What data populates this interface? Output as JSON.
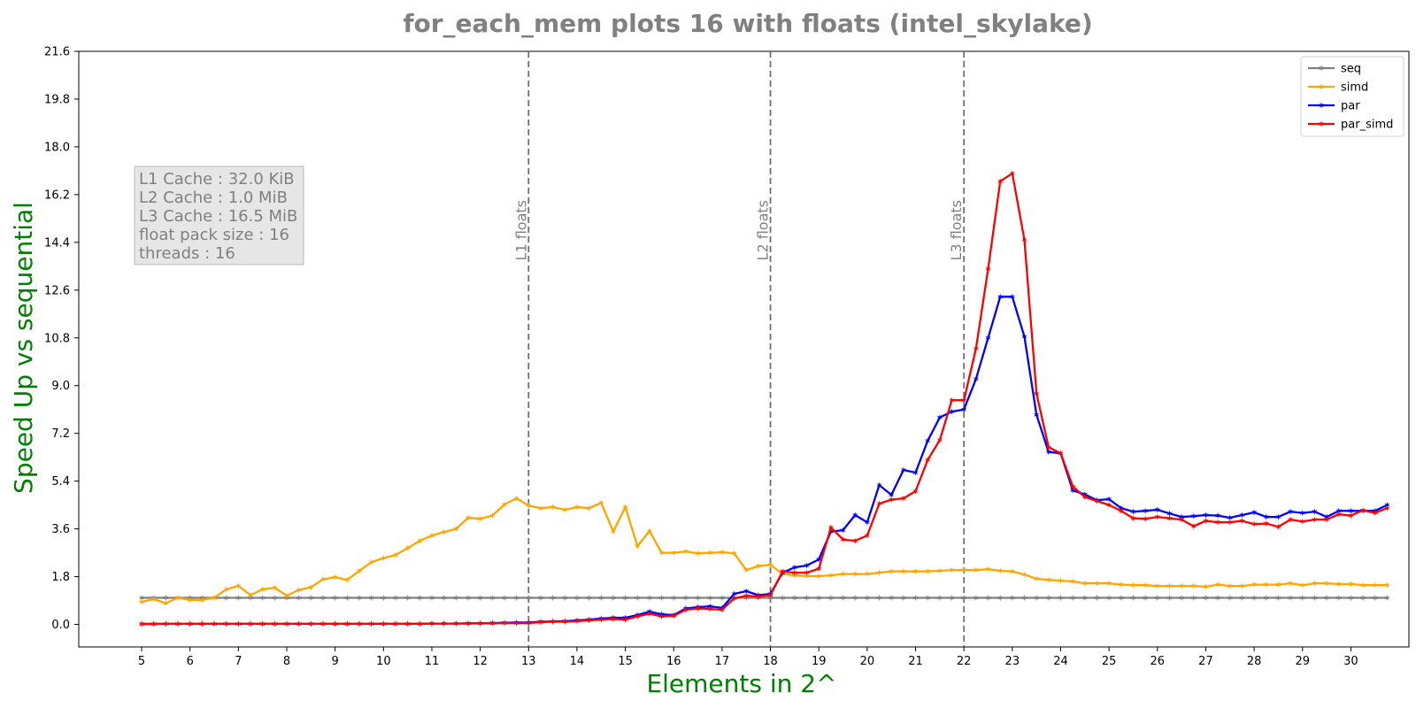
{
  "chart_data": {
    "type": "line",
    "title": "for_each_mem plots 16 with floats  (intel_skylake)",
    "xlabel": "Elements in 2^",
    "ylabel": "Speed Up vs sequential",
    "xlim": [
      3.7,
      31.2
    ],
    "ylim": [
      -0.85,
      21.6
    ],
    "x_ticks": [
      5,
      6,
      7,
      8,
      9,
      10,
      11,
      12,
      13,
      14,
      15,
      16,
      17,
      18,
      19,
      20,
      21,
      22,
      23,
      24,
      25,
      26,
      27,
      28,
      29,
      30
    ],
    "y_ticks": [
      "0.0",
      "1.8",
      "3.6",
      "5.4",
      "7.2",
      "9.0",
      "10.8",
      "12.6",
      "14.4",
      "16.2",
      "18.0",
      "19.8",
      "21.6"
    ],
    "grid": false,
    "legend_position": "top-right",
    "x": [
      5.0,
      5.25,
      5.5,
      5.75,
      6.0,
      6.25,
      6.5,
      6.75,
      7.0,
      7.25,
      7.5,
      7.75,
      8.0,
      8.25,
      8.5,
      8.75,
      9.0,
      9.25,
      9.5,
      9.75,
      10.0,
      10.25,
      10.5,
      10.75,
      11.0,
      11.25,
      11.5,
      11.75,
      12.0,
      12.25,
      12.5,
      12.75,
      13.0,
      13.25,
      13.5,
      13.75,
      14.0,
      14.25,
      14.5,
      14.75,
      15.0,
      15.25,
      15.5,
      15.75,
      16.0,
      16.25,
      16.5,
      16.75,
      17.0,
      17.25,
      17.5,
      17.75,
      18.0,
      18.25,
      18.5,
      18.75,
      19.0,
      19.25,
      19.5,
      19.75,
      20.0,
      20.25,
      20.5,
      20.75,
      21.0,
      21.25,
      21.5,
      21.75,
      22.0,
      22.25,
      22.5,
      22.75,
      23.0,
      23.25,
      23.5,
      23.75,
      24.0,
      24.25,
      24.5,
      24.75,
      25.0,
      25.25,
      25.5,
      25.75,
      26.0,
      26.25,
      26.5,
      26.75,
      27.0,
      27.25,
      27.5,
      27.75,
      28.0,
      28.25,
      28.5,
      28.75,
      29.0,
      29.25,
      29.5,
      29.75,
      30.0,
      30.25,
      30.5,
      30.75
    ],
    "series": [
      {
        "name": "seq",
        "color": "#808080",
        "values": [
          1,
          1,
          1,
          1,
          1,
          1,
          1,
          1,
          1,
          1,
          1,
          1,
          1,
          1,
          1,
          1,
          1,
          1,
          1,
          1,
          1,
          1,
          1,
          1,
          1,
          1,
          1,
          1,
          1,
          1,
          1,
          1,
          1,
          1,
          1,
          1,
          1,
          1,
          1,
          1,
          1,
          1,
          1,
          1,
          1,
          1,
          1,
          1,
          1,
          1,
          1,
          1,
          1,
          1,
          1,
          1,
          1,
          1,
          1,
          1,
          1,
          1,
          1,
          1,
          1,
          1,
          1,
          1,
          1,
          1,
          1,
          1,
          1,
          1,
          1,
          1,
          1,
          1,
          1,
          1,
          1,
          1,
          1,
          1,
          1,
          1,
          1,
          1,
          1,
          1,
          1,
          1,
          1,
          1,
          1,
          1,
          1,
          1,
          1,
          1,
          1,
          1,
          1,
          1
        ]
      },
      {
        "name": "simd",
        "color": "#ffa500",
        "values": [
          0.85,
          0.95,
          0.8,
          1.0,
          0.92,
          0.92,
          1.0,
          1.32,
          1.45,
          1.1,
          1.32,
          1.38,
          1.08,
          1.3,
          1.4,
          1.7,
          1.78,
          1.68,
          2.02,
          2.35,
          2.5,
          2.62,
          2.88,
          3.15,
          3.35,
          3.48,
          3.6,
          4.02,
          3.98,
          4.1,
          4.52,
          4.75,
          4.48,
          4.38,
          4.42,
          4.32,
          4.42,
          4.38,
          4.58,
          3.5,
          4.42,
          2.95,
          3.52,
          2.7,
          2.7,
          2.75,
          2.68,
          2.7,
          2.72,
          2.68,
          2.05,
          2.2,
          2.25,
          1.9,
          1.85,
          1.82,
          1.82,
          1.85,
          1.9,
          1.9,
          1.9,
          1.95,
          2.0,
          2.0,
          2.0,
          2.0,
          2.02,
          2.05,
          2.05,
          2.05,
          2.08,
          2.02,
          2.0,
          1.88,
          1.72,
          1.68,
          1.65,
          1.62,
          1.55,
          1.55,
          1.55,
          1.5,
          1.48,
          1.48,
          1.45,
          1.45,
          1.45,
          1.45,
          1.42,
          1.5,
          1.45,
          1.45,
          1.5,
          1.5,
          1.5,
          1.55,
          1.48,
          1.55,
          1.55,
          1.52,
          1.52,
          1.48,
          1.48,
          1.48
        ]
      },
      {
        "name": "par",
        "color": "#0000ff",
        "values": [
          0.02,
          0.02,
          0.02,
          0.02,
          0.02,
          0.02,
          0.02,
          0.02,
          0.02,
          0.02,
          0.02,
          0.02,
          0.02,
          0.02,
          0.02,
          0.02,
          0.02,
          0.02,
          0.02,
          0.02,
          0.02,
          0.02,
          0.02,
          0.02,
          0.03,
          0.03,
          0.03,
          0.04,
          0.04,
          0.05,
          0.06,
          0.07,
          0.07,
          0.1,
          0.11,
          0.12,
          0.15,
          0.18,
          0.22,
          0.25,
          0.25,
          0.35,
          0.48,
          0.38,
          0.35,
          0.6,
          0.65,
          0.68,
          0.62,
          1.15,
          1.25,
          1.1,
          1.15,
          1.95,
          2.15,
          2.22,
          2.45,
          3.5,
          3.55,
          4.12,
          3.85,
          5.25,
          4.88,
          5.82,
          5.72,
          6.92,
          7.8,
          8.02,
          8.1,
          9.25,
          10.8,
          12.35,
          12.35,
          10.85,
          7.9,
          6.5,
          6.45,
          5.05,
          4.9,
          4.68,
          4.72,
          4.38,
          4.25,
          4.28,
          4.32,
          4.18,
          4.05,
          4.08,
          4.12,
          4.1,
          4.02,
          4.12,
          4.22,
          4.05,
          4.05,
          4.25,
          4.2,
          4.25,
          4.05,
          4.28,
          4.28,
          4.28,
          4.28,
          4.5
        ]
      },
      {
        "name": "par_simd",
        "color": "#ff0000",
        "values": [
          0.01,
          0.01,
          0.02,
          0.02,
          0.02,
          0.02,
          0.02,
          0.02,
          0.02,
          0.02,
          0.02,
          0.02,
          0.02,
          0.02,
          0.02,
          0.02,
          0.02,
          0.02,
          0.02,
          0.02,
          0.02,
          0.02,
          0.02,
          0.02,
          0.03,
          0.03,
          0.03,
          0.03,
          0.04,
          0.04,
          0.05,
          0.05,
          0.05,
          0.08,
          0.1,
          0.1,
          0.12,
          0.15,
          0.18,
          0.2,
          0.18,
          0.3,
          0.4,
          0.3,
          0.32,
          0.55,
          0.6,
          0.58,
          0.55,
          0.98,
          1.08,
          1.05,
          1.1,
          2.0,
          1.95,
          1.95,
          2.1,
          3.65,
          3.2,
          3.15,
          3.35,
          4.55,
          4.7,
          4.75,
          5.02,
          6.2,
          6.95,
          8.45,
          8.45,
          10.4,
          13.4,
          16.7,
          17.0,
          14.5,
          8.7,
          6.68,
          6.45,
          5.2,
          4.8,
          4.65,
          4.5,
          4.28,
          4.0,
          3.98,
          4.05,
          4.0,
          3.95,
          3.7,
          3.9,
          3.85,
          3.85,
          3.9,
          3.78,
          3.8,
          3.68,
          3.95,
          3.88,
          3.95,
          3.95,
          4.15,
          4.1,
          4.3,
          4.2,
          4.38
        ]
      }
    ],
    "vlines": [
      {
        "x": 13,
        "label": "L1 floats"
      },
      {
        "x": 18,
        "label": "L2 floats"
      },
      {
        "x": 22,
        "label": "L3 floats"
      }
    ],
    "info_box": [
      "L1 Cache : 32.0 KiB",
      "L2 Cache : 1.0 MiB",
      "L3 Cache : 16.5 MiB",
      "float pack size : 16",
      "threads : 16"
    ]
  }
}
